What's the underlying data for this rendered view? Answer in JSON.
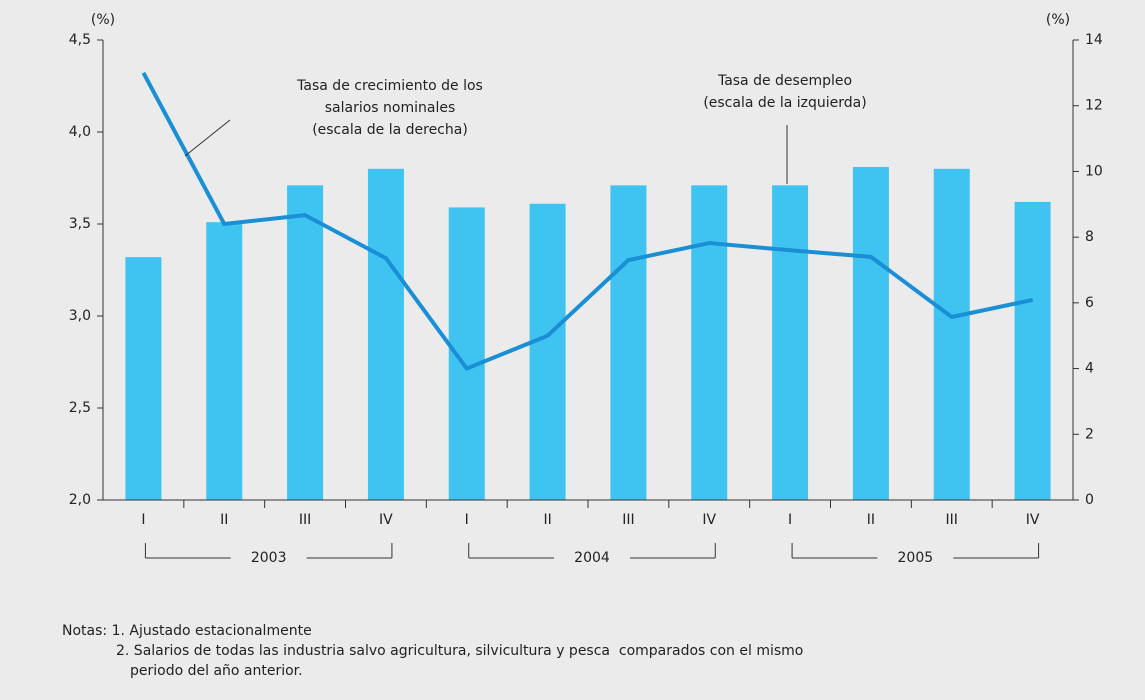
{
  "chart_data": {
    "type": "bar_line",
    "categories": [
      "I",
      "II",
      "III",
      "IV",
      "I",
      "II",
      "III",
      "IV",
      "I",
      "II",
      "III",
      "IV"
    ],
    "x_groups": [
      "2003",
      "2004",
      "2005"
    ],
    "series": [
      {
        "type": "bar",
        "color": "#3fc3f0",
        "axis": "y",
        "values": [
          3.32,
          3.51,
          3.71,
          3.8,
          3.59,
          3.61,
          3.71,
          3.71,
          3.71,
          3.81,
          3.8,
          3.62
        ]
      },
      {
        "type": "line",
        "color": "#1a8fd6",
        "axis": "y2",
        "values": [
          13.0,
          8.4,
          8.67,
          7.36,
          4.0,
          5.0,
          7.3,
          7.82,
          7.6,
          7.4,
          5.57,
          6.09
        ]
      }
    ],
    "ylabel": "(%)",
    "y2label": "(%)",
    "ylim": [
      2.0,
      4.5
    ],
    "yticks": [
      {
        "value": 2.0,
        "label": "2,0"
      },
      {
        "value": 2.5,
        "label": "2,5"
      },
      {
        "value": 3.0,
        "label": "3,0"
      },
      {
        "value": 3.5,
        "label": "3,5"
      },
      {
        "value": 4.0,
        "label": "4,0"
      },
      {
        "value": 4.5,
        "label": "4,5"
      }
    ],
    "y2lim": [
      0,
      14
    ],
    "y2ticks": [
      0,
      2,
      4,
      6,
      8,
      10,
      12,
      14
    ],
    "annotations": [
      {
        "lines": [
          "Tasa de crecimiento de los",
          "salarios nominales",
          "(escala de la derecha)"
        ]
      },
      {
        "lines": [
          "Tasa de desempleo",
          "(escala de la izquierda)"
        ]
      }
    ],
    "notes": [
      "Notas: 1. Ajustado estacionalmente",
      "2. Salarios de todas las industria salvo agricultura, silvicultura y pesca  comparados con el mismo",
      "periodo del año anterior."
    ]
  }
}
